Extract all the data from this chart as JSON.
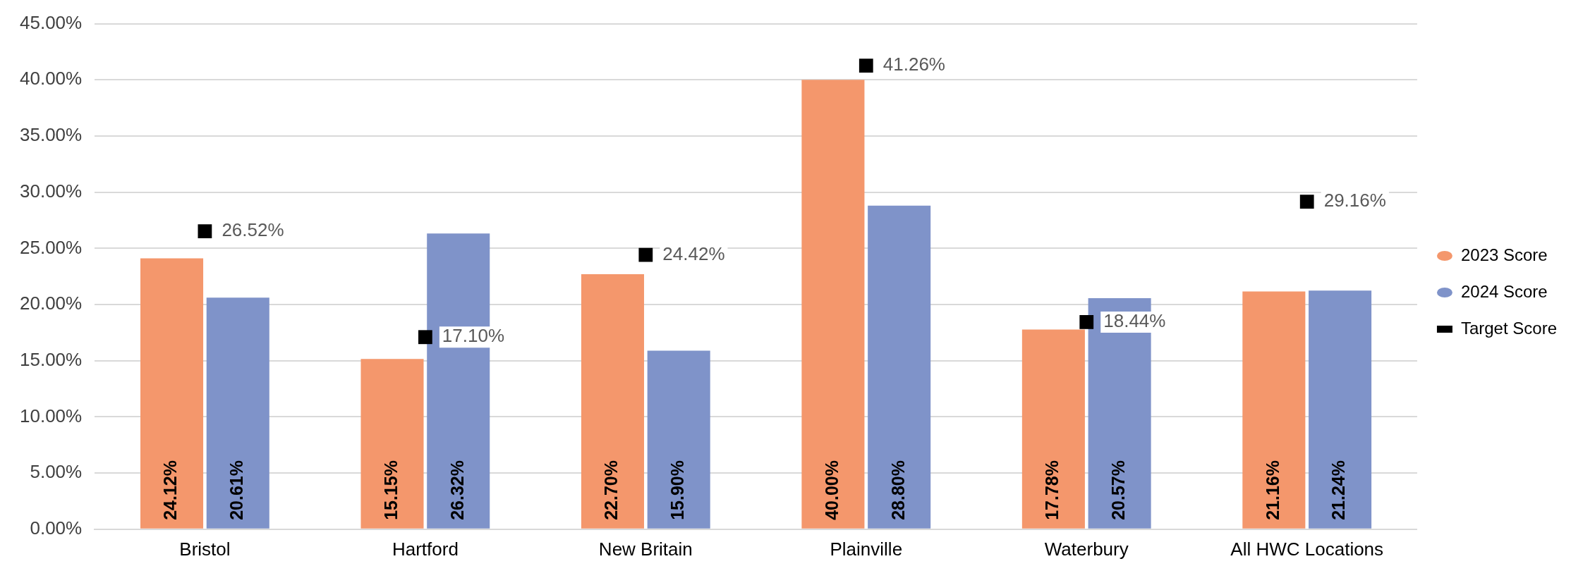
{
  "chart_data": {
    "type": "bar",
    "categories": [
      "Bristol",
      "Hartford",
      "New Britain",
      "Plainville",
      "Waterbury",
      "All HWC Locations"
    ],
    "series": [
      {
        "name": "2023 Score",
        "color": "#f4976c",
        "values": [
          24.12,
          15.15,
          22.7,
          40.0,
          17.78,
          21.16
        ],
        "value_labels": [
          "24.12%",
          "15.15%",
          "22.70%",
          "40.00%",
          "17.78%",
          "21.16%"
        ]
      },
      {
        "name": "2024 Score",
        "color": "#7f93c9",
        "values": [
          20.61,
          26.32,
          15.9,
          28.8,
          20.57,
          21.24
        ],
        "value_labels": [
          "20.61%",
          "26.32%",
          "15.90%",
          "28.80%",
          "20.57%",
          "21.24%"
        ]
      },
      {
        "name": "Target Score",
        "type": "scatter",
        "color": "#000000",
        "marker": "square",
        "x": [
          "Bristol",
          "Hartford",
          "New Britain",
          "Plainville",
          "Waterbury",
          "All HWC Locations"
        ],
        "values": [
          26.52,
          17.1,
          24.42,
          41.26,
          18.44,
          29.16
        ],
        "value_labels": [
          "26.52%",
          "17.10%",
          "24.42%",
          "41.26%",
          "18.44%",
          "29.16%"
        ]
      }
    ],
    "ylim": [
      0,
      45
    ],
    "yticks": [
      {
        "value": 0,
        "label": "0.00%"
      },
      {
        "value": 5,
        "label": "5.00%"
      },
      {
        "value": 10,
        "label": "10.00%"
      },
      {
        "value": 15,
        "label": "15.00%"
      },
      {
        "value": 20,
        "label": "20.00%"
      },
      {
        "value": 25,
        "label": "25.00%"
      },
      {
        "value": 30,
        "label": "30.00%"
      },
      {
        "value": 35,
        "label": "35.00%"
      },
      {
        "value": 40,
        "label": "40.00%"
      },
      {
        "value": 45,
        "label": "45.00%"
      }
    ],
    "grid": "y",
    "legend": "right"
  }
}
